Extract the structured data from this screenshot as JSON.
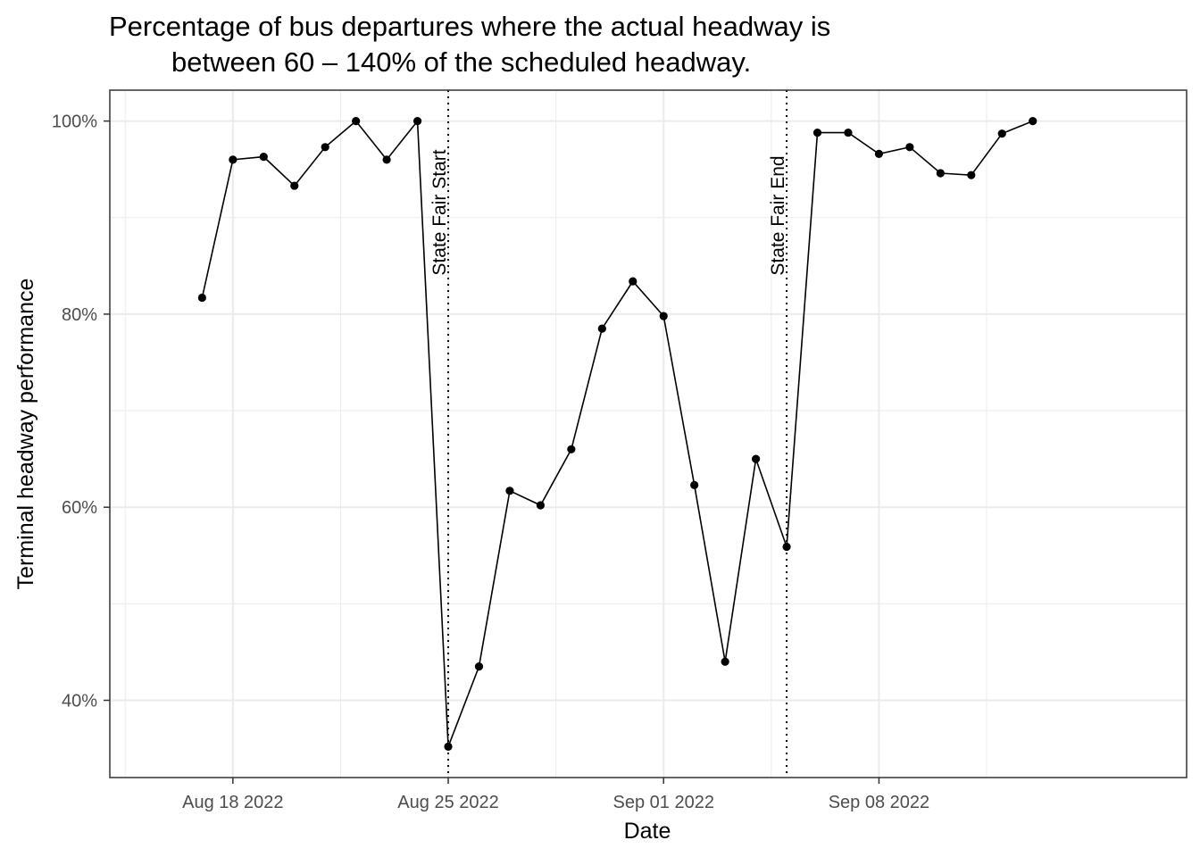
{
  "chart_data": {
    "type": "line",
    "title_lines": [
      "Percentage of bus departures where the actual headway is",
      "between 60 – 140% of the scheduled headway."
    ],
    "xlabel": "Date",
    "ylabel": "Terminal headway performance",
    "x_tick_labels": [
      "Aug 18 2022",
      "Aug 25 2022",
      "Sep 01 2022",
      "Sep 08 2022"
    ],
    "x_tick_dates": [
      "2022-08-18",
      "2022-08-25",
      "2022-09-01",
      "2022-09-08"
    ],
    "xlim": [
      "2022-08-14",
      "2022-09-18"
    ],
    "y_tick_labels": [
      "40%",
      "60%",
      "80%",
      "100%"
    ],
    "y_tick_values": [
      40,
      60,
      80,
      100
    ],
    "ylim": [
      32,
      103.2
    ],
    "grid": true,
    "annotations": [
      {
        "date": "2022-08-25",
        "label": "State Fair Start",
        "style": "dotted"
      },
      {
        "date": "2022-09-05",
        "label": "State Fair End",
        "style": "dotted"
      }
    ],
    "series": [
      {
        "dates": [
          "2022-08-17",
          "2022-08-18",
          "2022-08-19",
          "2022-08-20",
          "2022-08-21",
          "2022-08-22",
          "2022-08-23",
          "2022-08-24",
          "2022-08-25",
          "2022-08-26",
          "2022-08-27",
          "2022-08-28",
          "2022-08-29",
          "2022-08-30",
          "2022-08-31",
          "2022-09-01",
          "2022-09-02",
          "2022-09-03",
          "2022-09-04",
          "2022-09-05",
          "2022-09-06",
          "2022-09-07",
          "2022-09-08",
          "2022-09-09",
          "2022-09-10",
          "2022-09-11",
          "2022-09-12",
          "2022-09-13"
        ],
        "values": [
          81.7,
          96.0,
          96.3,
          93.3,
          97.3,
          100.0,
          96.0,
          100.0,
          35.2,
          43.5,
          61.7,
          60.2,
          66.0,
          78.5,
          83.4,
          79.8,
          62.3,
          44.0,
          65.0,
          55.9,
          98.8,
          98.8,
          96.6,
          97.3,
          94.6,
          94.4,
          98.7,
          100.0
        ]
      }
    ]
  }
}
